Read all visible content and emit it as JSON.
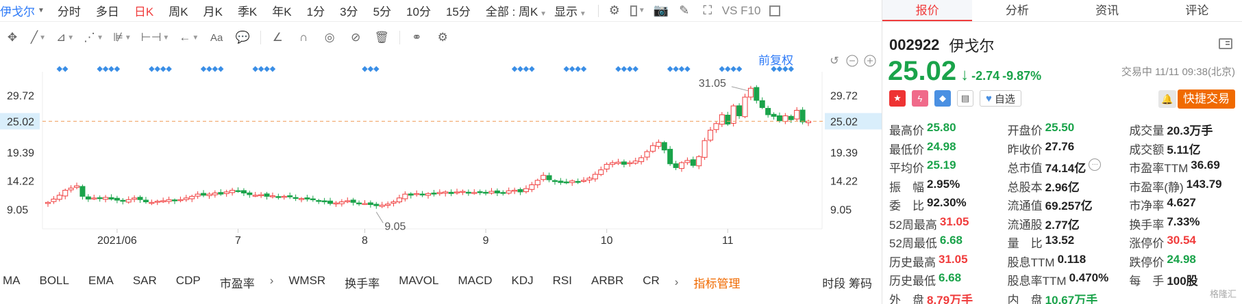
{
  "topbar": {
    "stock_name": "伊戈尔",
    "tabs": [
      "分时",
      "多日",
      "日K",
      "周K",
      "月K",
      "季K",
      "年K",
      "1分",
      "3分",
      "5分",
      "10分",
      "15分"
    ],
    "active_tab": "日K",
    "range_select": "全部 : 周K",
    "display_label": "显示",
    "vs_label": "VS F10"
  },
  "chart": {
    "adjust_label": "前复权",
    "left_ticks": [
      "29.72",
      "25.02",
      "19.39",
      "14.22",
      "9.05"
    ],
    "right_ticks": [
      "29.72",
      "25.02",
      "19.39",
      "14.22",
      "9.05"
    ],
    "current_price": "25.02",
    "high_label": "31.05",
    "low_label": "9.05",
    "x_labels": [
      "2021/06",
      "7",
      "8",
      "9",
      "10",
      "11"
    ],
    "colors": {
      "up": "#f03c3c",
      "down": "#1aa34a",
      "dashed": "#f0a060",
      "marker": "#3a8ee6",
      "price_tag_bg": "#d9eefb"
    }
  },
  "chart_data": {
    "type": "candlestick",
    "ylim": [
      5.5,
      34
    ],
    "high": 31.05,
    "low": 9.05,
    "last": 25.02,
    "closes": [
      10.3,
      10.9,
      11.6,
      12.5,
      12.9,
      13.3,
      11.4,
      10.9,
      11.1,
      11.0,
      11.2,
      10.9,
      10.7,
      10.5,
      10.8,
      11.1,
      10.8,
      10.4,
      10.3,
      10.5,
      10.6,
      10.8,
      10.6,
      10.8,
      11.1,
      11.4,
      11.8,
      11.6,
      11.8,
      12.0,
      11.8,
      12.2,
      12.5,
      12.3,
      12.0,
      11.7,
      11.6,
      11.7,
      11.4,
      11.5,
      11.3,
      11.4,
      11.3,
      11.0,
      11.0,
      10.9,
      10.8,
      10.6,
      10.4,
      10.1,
      10.2,
      10.4,
      10.6,
      10.3,
      10.2,
      10.1,
      9.9,
      9.7,
      9.8,
      10.0,
      10.4,
      11.1,
      11.8,
      11.6,
      11.9,
      11.7,
      11.9,
      11.8,
      12.1,
      12.2,
      11.9,
      12.2,
      12.3,
      12.0,
      12.1,
      12.2,
      12.1,
      12.3,
      12.0,
      12.1,
      12.4,
      12.5,
      12.2,
      12.8,
      13.5,
      14.3,
      15.2,
      14.4,
      14.1,
      13.9,
      14.0,
      14.2,
      14.1,
      14.3,
      14.7,
      15.4,
      16.2,
      17.2,
      17.5,
      17.6,
      17.2,
      17.5,
      17.8,
      18.4,
      19.5,
      20.6,
      21.2,
      19.8,
      17.3,
      16.6,
      17.5,
      17.9,
      17.0,
      18.6,
      21.5,
      23.4,
      24.6,
      26.2,
      24.5,
      27.8,
      26.0,
      29.4,
      31.0,
      28.8,
      27.5,
      26.2,
      25.9,
      25.1,
      26.0,
      25.3,
      27.0,
      24.9,
      25.02
    ]
  },
  "indicators": {
    "items": [
      "MA",
      "BOLL",
      "EMA",
      "SAR",
      "CDP",
      "市盈率",
      "WMSR",
      "换手率",
      "MAVOL",
      "MACD",
      "KDJ",
      "RSI",
      "ARBR",
      "CR"
    ],
    "manage": "指标管理",
    "right": "时段 筹码"
  },
  "panel": {
    "tabs": [
      "报价",
      "分析",
      "资讯",
      "评论"
    ],
    "active_tab": "报价",
    "code": "002922",
    "name": "伊戈尔",
    "price": "25.02",
    "arrow": "↓",
    "change": "-2.74",
    "change_pct": "-9.87%",
    "status": "交易中 11/11 09:38(北京)",
    "fav_label": "自选",
    "trade_label": "快捷交易",
    "rows": [
      [
        {
          "l": "最高价",
          "v": "25.80",
          "c": "green"
        },
        {
          "l": "开盘价",
          "v": "25.50",
          "c": "green"
        },
        {
          "l": "成交量",
          "v": "20.3",
          "u": "万手",
          "c": ""
        }
      ],
      [
        {
          "l": "最低价",
          "v": "24.98",
          "c": "green"
        },
        {
          "l": "昨收价",
          "v": "27.76",
          "c": ""
        },
        {
          "l": "成交额",
          "v": "5.11亿",
          "c": ""
        }
      ],
      [
        {
          "l": "平均价",
          "v": "25.19",
          "c": "green"
        },
        {
          "l": "总市值",
          "v": "74.14亿",
          "c": "",
          "dots": true
        },
        {
          "l": "市盈率TTM",
          "v": "36.69",
          "c": ""
        }
      ],
      [
        {
          "l": "振　幅",
          "v": "2.95%",
          "c": ""
        },
        {
          "l": "总股本",
          "v": "2.96亿",
          "c": ""
        },
        {
          "l": "市盈率(静)",
          "v": "143.79",
          "c": ""
        }
      ],
      [
        {
          "l": "委　比",
          "v": "92.30%",
          "c": ""
        },
        {
          "l": "流通值",
          "v": "69.257亿",
          "c": ""
        },
        {
          "l": "市净率",
          "v": "4.627",
          "c": ""
        }
      ],
      [
        {
          "l": "52周最高",
          "v": "31.05",
          "c": "red"
        },
        {
          "l": "流通股",
          "v": "2.77亿",
          "c": ""
        },
        {
          "l": "换手率",
          "v": "7.33%",
          "c": ""
        }
      ],
      [
        {
          "l": "52周最低",
          "v": "6.68",
          "c": "green"
        },
        {
          "l": "量　比",
          "v": "13.52",
          "c": ""
        },
        {
          "l": "涨停价",
          "v": "30.54",
          "c": "red"
        }
      ],
      [
        {
          "l": "历史最高",
          "v": "31.05",
          "c": "red"
        },
        {
          "l": "股息TTM",
          "v": "0.118",
          "c": ""
        },
        {
          "l": "跌停价",
          "v": "24.98",
          "c": "green"
        }
      ],
      [
        {
          "l": "历史最低",
          "v": "6.68",
          "c": "green"
        },
        {
          "l": "股息率TTM",
          "v": "0.470%",
          "c": ""
        },
        {
          "l": "每　手",
          "v": "100股",
          "c": ""
        }
      ],
      [
        {
          "l": "外　盘",
          "v": "8.79",
          "u": "万手",
          "c": "red"
        },
        {
          "l": "内　盘",
          "v": "10.67",
          "u": "万手",
          "c": "green"
        },
        null
      ]
    ],
    "watermark": "格隆汇"
  }
}
